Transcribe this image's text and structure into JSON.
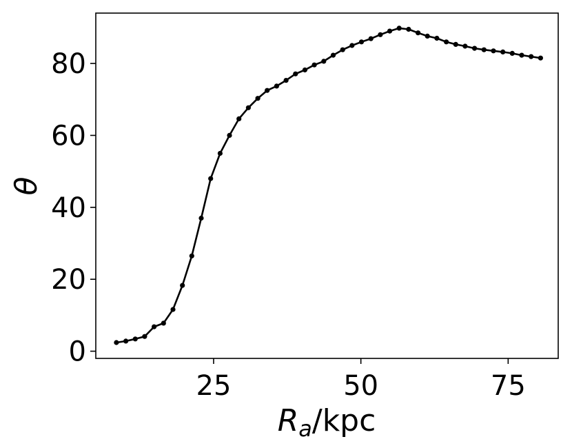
{
  "chart_data": {
    "type": "line",
    "xlabel": "R_a/kpc",
    "xlabel_main": "R",
    "xlabel_sub": "a",
    "xlabel_unit": "/kpc",
    "ylabel": "θ",
    "xlim": [
      5,
      83.5
    ],
    "ylim": [
      -2,
      94
    ],
    "xticks": [
      25,
      50,
      75
    ],
    "yticks": [
      0,
      20,
      40,
      60,
      80
    ],
    "grid": false,
    "line_color": "#000000",
    "marker": "circle",
    "series": [
      {
        "x": [
          8.5,
          10.1,
          11.7,
          13.3,
          14.9,
          16.5,
          18.1,
          19.7,
          21.3,
          22.9,
          24.5,
          26.1,
          27.7,
          29.3,
          30.9,
          32.5,
          34.1,
          35.7,
          37.3,
          38.9,
          40.5,
          42.1,
          43.7,
          45.3,
          46.9,
          48.5,
          50.1,
          51.7,
          53.3,
          54.9,
          56.5,
          58.1,
          59.7,
          61.3,
          62.9,
          64.5,
          66.1,
          67.7,
          69.3,
          70.9,
          72.5,
          74.1,
          75.7,
          77.3,
          78.9,
          80.5
        ],
        "y": [
          2.4,
          2.8,
          3.4,
          4.1,
          6.8,
          7.8,
          11.6,
          18.3,
          26.5,
          37.0,
          48.0,
          55.0,
          60.0,
          64.6,
          67.7,
          70.3,
          72.5,
          73.7,
          75.3,
          77.1,
          78.2,
          79.6,
          80.6,
          82.3,
          83.8,
          85.0,
          86.0,
          86.9,
          88.0,
          89.0,
          89.8,
          89.5,
          88.5,
          87.6,
          87.0,
          86.0,
          85.3,
          84.8,
          84.2,
          83.8,
          83.5,
          83.2,
          82.8,
          82.3,
          81.9,
          81.5
        ]
      }
    ]
  }
}
